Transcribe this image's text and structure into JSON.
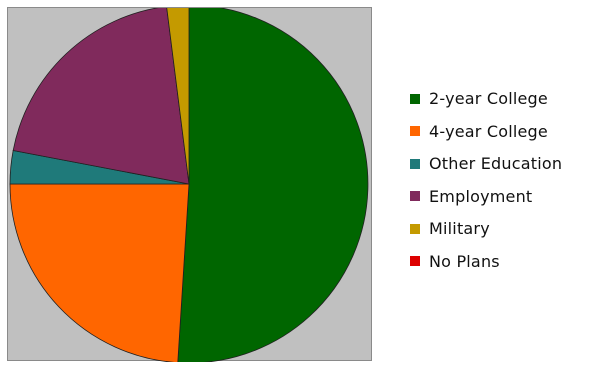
{
  "chart_data": {
    "type": "pie",
    "title": "",
    "start_angle_deg": 0,
    "direction": "clockwise",
    "slices": [
      {
        "label": "2-year College",
        "value": 51,
        "color": "#006600"
      },
      {
        "label": "4-year College",
        "value": 24,
        "color": "#ff6600"
      },
      {
        "label": "Other Education",
        "value": 3,
        "color": "#1f7a7a"
      },
      {
        "label": "Employment",
        "value": 20,
        "color": "#802a5c"
      },
      {
        "label": "Military",
        "value": 2,
        "color": "#c49a00"
      },
      {
        "label": "No Plans",
        "value": 0,
        "color": "#dd0000"
      }
    ],
    "legend_position": "right",
    "background_color": "#c0c0c0"
  }
}
